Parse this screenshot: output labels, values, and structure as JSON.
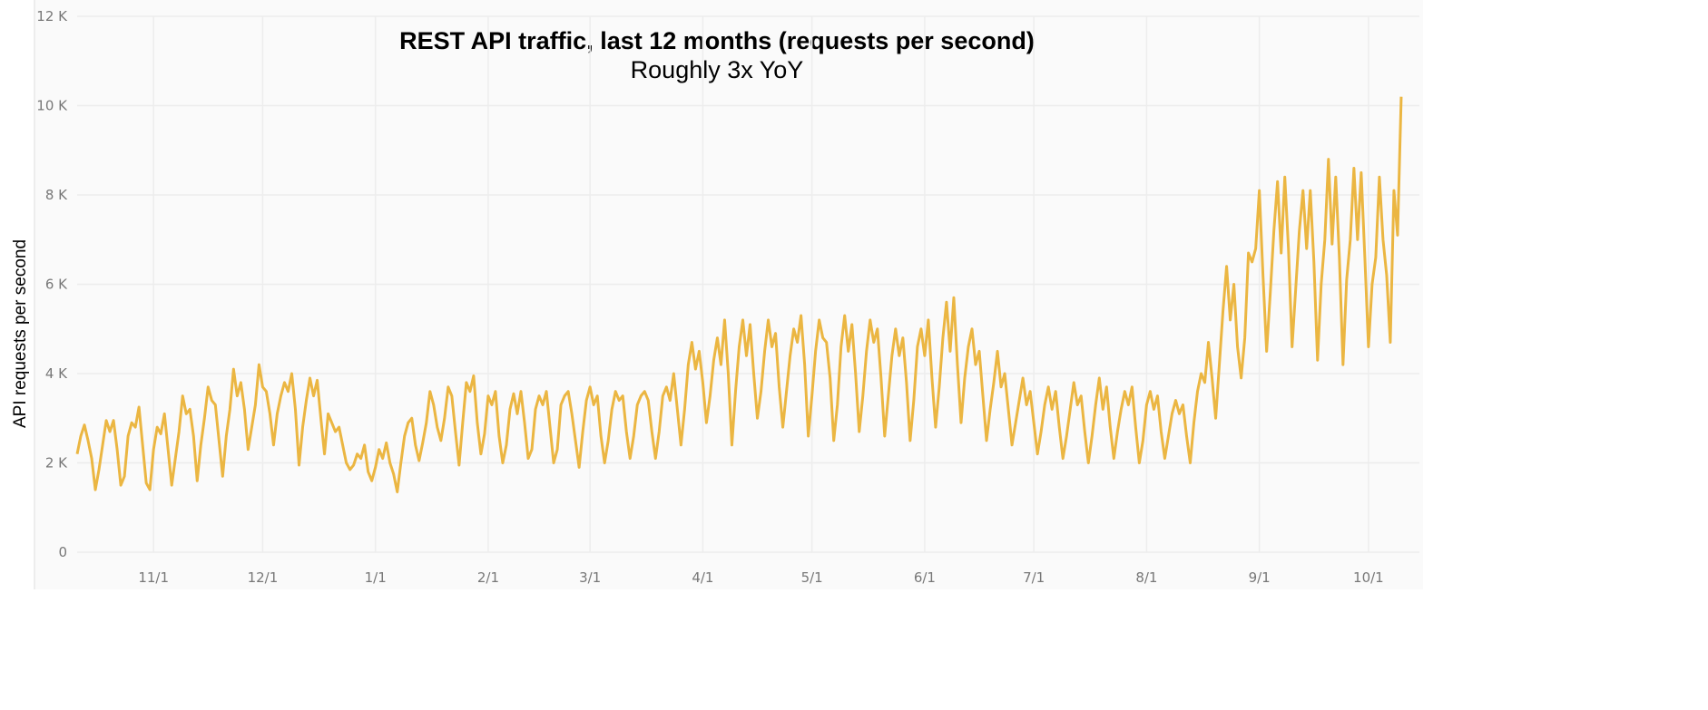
{
  "chart_data": {
    "type": "line",
    "title": "REST API traffic, last 12 months (requests per second)",
    "subtitle": "Roughly 3x YoY",
    "y_label": "API requests per second",
    "color": "#ebb642",
    "grid": true,
    "xlim": [
      0,
      369
    ],
    "xticks": [
      {
        "value": 21,
        "label": "11/1"
      },
      {
        "value": 51,
        "label": "12/1"
      },
      {
        "value": 82,
        "label": "1/1"
      },
      {
        "value": 113,
        "label": "2/1"
      },
      {
        "value": 141,
        "label": "3/1"
      },
      {
        "value": 172,
        "label": "4/1"
      },
      {
        "value": 202,
        "label": "5/1"
      },
      {
        "value": 233,
        "label": "6/1"
      },
      {
        "value": 263,
        "label": "7/1"
      },
      {
        "value": 294,
        "label": "8/1"
      },
      {
        "value": 325,
        "label": "9/1"
      },
      {
        "value": 355,
        "label": "10/1"
      }
    ],
    "ylim": [
      0,
      12000
    ],
    "yticks": [
      0,
      {
        "value": 2000,
        "label": "2 K"
      },
      {
        "value": 4000,
        "label": "4 K"
      },
      {
        "value": 6000,
        "label": "6 K"
      },
      {
        "value": 8000,
        "label": "8 K"
      },
      {
        "value": 10000,
        "label": "10 K"
      },
      {
        "value": 12000,
        "label": "12 K"
      }
    ],
    "x": [
      0,
      1,
      2,
      3,
      4,
      5,
      6,
      7,
      8,
      9,
      10,
      11,
      12,
      13,
      14,
      15,
      16,
      17,
      18,
      19,
      20,
      21,
      22,
      23,
      24,
      25,
      26,
      27,
      28,
      29,
      30,
      31,
      32,
      33,
      34,
      35,
      36,
      37,
      38,
      39,
      40,
      41,
      42,
      43,
      44,
      45,
      46,
      47,
      48,
      49,
      50,
      51,
      52,
      53,
      54,
      55,
      56,
      57,
      58,
      59,
      60,
      61,
      62,
      63,
      64,
      65,
      66,
      67,
      68,
      69,
      70,
      71,
      72,
      73,
      74,
      75,
      76,
      77,
      78,
      79,
      80,
      81,
      82,
      83,
      84,
      85,
      86,
      87,
      88,
      89,
      90,
      91,
      92,
      93,
      94,
      95,
      96,
      97,
      98,
      99,
      100,
      101,
      102,
      103,
      104,
      105,
      106,
      107,
      108,
      109,
      110,
      111,
      112,
      113,
      114,
      115,
      116,
      117,
      118,
      119,
      120,
      121,
      122,
      123,
      124,
      125,
      126,
      127,
      128,
      129,
      130,
      131,
      132,
      133,
      134,
      135,
      136,
      137,
      138,
      139,
      140,
      141,
      142,
      143,
      144,
      145,
      146,
      147,
      148,
      149,
      150,
      151,
      152,
      153,
      154,
      155,
      156,
      157,
      158,
      159,
      160,
      161,
      162,
      163,
      164,
      165,
      166,
      167,
      168,
      169,
      170,
      171,
      172,
      173,
      174,
      175,
      176,
      177,
      178,
      179,
      180,
      181,
      182,
      183,
      184,
      185,
      186,
      187,
      188,
      189,
      190,
      191,
      192,
      193,
      194,
      195,
      196,
      197,
      198,
      199,
      200,
      201,
      202,
      203,
      204,
      205,
      206,
      207,
      208,
      209,
      210,
      211,
      212,
      213,
      214,
      215,
      216,
      217,
      218,
      219,
      220,
      221,
      222,
      223,
      224,
      225,
      226,
      227,
      228,
      229,
      230,
      231,
      232,
      233,
      234,
      235,
      236,
      237,
      238,
      239,
      240,
      241,
      242,
      243,
      244,
      245,
      246,
      247,
      248,
      249,
      250,
      251,
      252,
      253,
      254,
      255,
      256,
      257,
      258,
      259,
      260,
      261,
      262,
      263,
      264,
      265,
      266,
      267,
      268,
      269,
      270,
      271,
      272,
      273,
      274,
      275,
      276,
      277,
      278,
      279,
      280,
      281,
      282,
      283,
      284,
      285,
      286,
      287,
      288,
      289,
      290,
      291,
      292,
      293,
      294,
      295,
      296,
      297,
      298,
      299,
      300,
      301,
      302,
      303,
      304,
      305,
      306,
      307,
      308,
      309,
      310,
      311,
      312,
      313,
      314,
      315,
      316,
      317,
      318,
      319,
      320,
      321,
      322,
      323,
      324,
      325,
      326,
      327,
      328,
      329,
      330,
      331,
      332,
      333,
      334,
      335,
      336,
      337,
      338,
      339,
      340,
      341,
      342,
      343,
      344,
      345,
      346,
      347,
      348,
      349,
      350,
      351,
      352,
      353,
      354,
      355,
      356,
      357,
      358,
      359,
      360,
      361,
      362,
      363,
      364
    ],
    "values": [
      2200,
      2600,
      2850,
      2500,
      2100,
      1400,
      1850,
      2400,
      2950,
      2700,
      2950,
      2300,
      1500,
      1700,
      2600,
      2900,
      2800,
      3250,
      2400,
      1550,
      1400,
      2300,
      2800,
      2650,
      3100,
      2300,
      1500,
      2100,
      2700,
      3500,
      3100,
      3200,
      2600,
      1600,
      2400,
      3000,
      3700,
      3400,
      3300,
      2500,
      1700,
      2600,
      3200,
      4100,
      3500,
      3800,
      3200,
      2300,
      2800,
      3300,
      4200,
      3700,
      3600,
      3100,
      2400,
      3100,
      3500,
      3800,
      3600,
      4000,
      3200,
      1950,
      2800,
      3400,
      3900,
      3500,
      3850,
      3000,
      2200,
      3100,
      2900,
      2700,
      2800,
      2400,
      2000,
      1850,
      1950,
      2200,
      2100,
      2400,
      1800,
      1600,
      1900,
      2300,
      2100,
      2450,
      2000,
      1750,
      1350,
      2000,
      2600,
      2900,
      3000,
      2400,
      2050,
      2450,
      2900,
      3600,
      3300,
      2800,
      2500,
      3000,
      3700,
      3500,
      2700,
      1950,
      2900,
      3800,
      3600,
      3950,
      2900,
      2200,
      2650,
      3500,
      3300,
      3600,
      2600,
      2000,
      2400,
      3200,
      3550,
      3100,
      3600,
      2900,
      2100,
      2300,
      3200,
      3500,
      3300,
      3600,
      2800,
      2000,
      2300,
      3300,
      3500,
      3600,
      3100,
      2500,
      1900,
      2700,
      3400,
      3700,
      3300,
      3500,
      2600,
      2000,
      2500,
      3200,
      3600,
      3400,
      3500,
      2700,
      2100,
      2600,
      3300,
      3500,
      3600,
      3400,
      2700,
      2100,
      2700,
      3500,
      3700,
      3400,
      4000,
      3200,
      2400,
      3200,
      4200,
      4700,
      4100,
      4500,
      3800,
      2900,
      3500,
      4300,
      4800,
      4200,
      5200,
      4000,
      2400,
      3600,
      4600,
      5200,
      4400,
      5100,
      4000,
      3000,
      3600,
      4500,
      5200,
      4600,
      4900,
      3700,
      2800,
      3600,
      4400,
      5000,
      4700,
      5300,
      4200,
      2600,
      3500,
      4500,
      5200,
      4800,
      4700,
      3900,
      2500,
      3300,
      4600,
      5300,
      4500,
      5100,
      4000,
      2700,
      3500,
      4500,
      5200,
      4700,
      5000,
      3900,
      2600,
      3500,
      4400,
      5000,
      4400,
      4800,
      3800,
      2500,
      3400,
      4600,
      5000,
      4400,
      5200,
      3900,
      2800,
      3700,
      4800,
      5600,
      4500,
      5700,
      4200,
      2900,
      3900,
      4600,
      5000,
      4200,
      4500,
      3500,
      2500,
      3200,
      3800,
      4500,
      3700,
      4000,
      3200,
      2400,
      2900,
      3400,
      3900,
      3300,
      3600,
      2900,
      2200,
      2700,
      3300,
      3700,
      3200,
      3600,
      2800,
      2100,
      2600,
      3200,
      3800,
      3300,
      3500,
      2700,
      2000,
      2600,
      3300,
      3900,
      3200,
      3700,
      2800,
      2100,
      2700,
      3200,
      3600,
      3300,
      3700,
      2800,
      2000,
      2500,
      3300,
      3600,
      3200,
      3500,
      2700,
      2100,
      2600,
      3100,
      3400,
      3100,
      3300,
      2600,
      2000,
      2900,
      3600,
      4000,
      3800,
      4700,
      3900,
      3000,
      4200,
      5400,
      6400,
      5200,
      6000,
      4600,
      3900,
      4800,
      6700,
      6500,
      6800,
      8100,
      6200,
      4500,
      5800,
      7200,
      8300,
      6700,
      8400,
      6800,
      4600,
      5900,
      7200,
      8100,
      6800,
      8100,
      6500,
      4300,
      6000,
      7000,
      8800,
      6900,
      8400,
      6600,
      4200,
      6100,
      7000,
      8600,
      7000,
      8500,
      6600,
      4600,
      6000,
      6600,
      8400,
      7000,
      6200,
      4700,
      8100,
      7100,
      10200
    ]
  }
}
